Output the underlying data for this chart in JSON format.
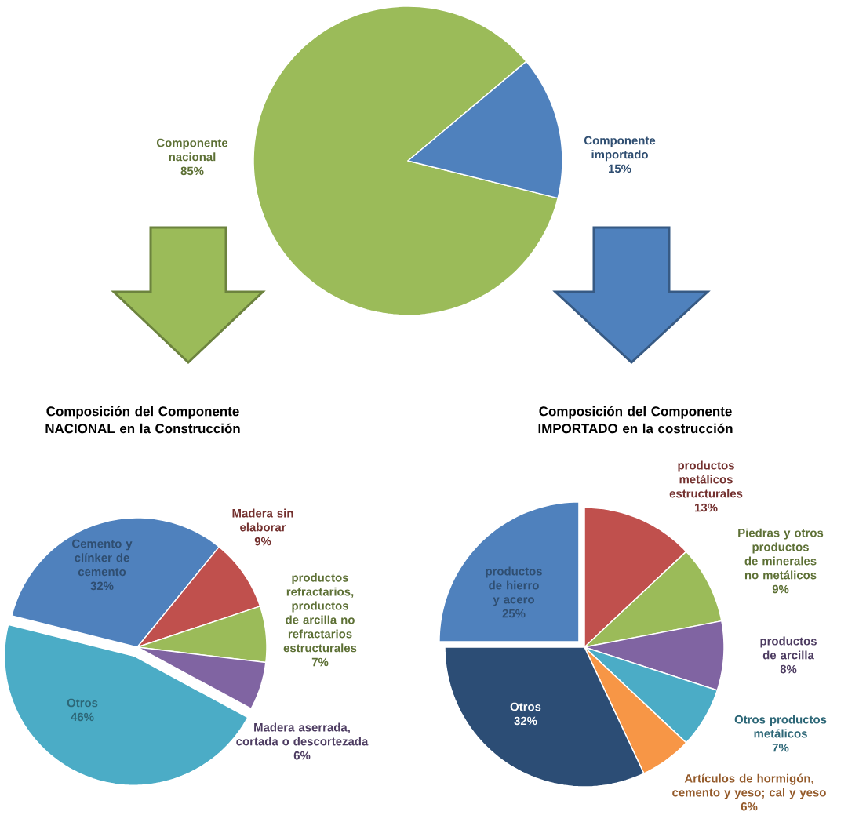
{
  "chart_data": [
    {
      "type": "pie",
      "categories": [
        "Componente nacional",
        "Componente importado"
      ],
      "values": [
        85,
        15
      ],
      "colors": [
        "#9bbb59",
        "#4f81bd"
      ],
      "value_labels": [
        "85%",
        "15%"
      ]
    },
    {
      "type": "pie",
      "title": "Composición del Componente NACIONAL en la Construcción",
      "categories": [
        "Cemento y clínker de cemento",
        "Madera sin elaborar",
        "productos refractarios, productos de arcilla no refractarios estructurales",
        "Madera aserrada, cortada o descortezada",
        "Otros"
      ],
      "values": [
        32,
        9,
        7,
        6,
        46
      ],
      "colors": [
        "#4f81bd",
        "#c0504d",
        "#9bbb59",
        "#8064a2",
        "#4bacc6"
      ],
      "value_labels": [
        "32%",
        "9%",
        "7%",
        "6%",
        "46%"
      ]
    },
    {
      "type": "pie",
      "title": "Composición del Componente IMPORTADO en la costrucción",
      "categories": [
        "productos metálicos estructurales",
        "Piedras y otros productos de minerales no metálicos",
        "productos de arcilla",
        "Otros productos metálicos",
        "Artículos de hormigón, cemento y yeso; cal y yeso",
        "Otros",
        "productos de hierro y acero"
      ],
      "values": [
        13,
        9,
        8,
        7,
        6,
        32,
        25
      ],
      "colors": [
        "#c0504d",
        "#9bbb59",
        "#8064a2",
        "#4bacc6",
        "#f79646",
        "#2c4d75",
        "#4f81bd"
      ],
      "value_labels": [
        "13%",
        "9%",
        "8%",
        "7%",
        "6%",
        "32%",
        "25%"
      ]
    }
  ]
}
